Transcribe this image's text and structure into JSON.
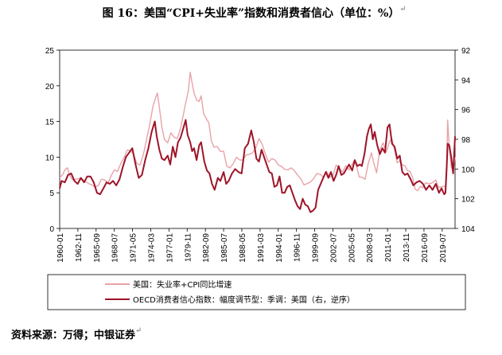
{
  "title": "图 16：美国“CPI+失业率”指数和消费者信心（单位：%）",
  "title_mark": "↵",
  "source": "资料来源：万得；中银证券",
  "source_mark": "↵",
  "chart_data": {
    "type": "line",
    "title": "图 16：美国“CPI+失业率”指数和消费者信心（单位：%）",
    "x_start_year": 1960,
    "x_end_year": 2021.5,
    "x_tick_labels": [
      "1960-01",
      "1962-11",
      "1965-09",
      "1968-07",
      "1971-05",
      "1974-03",
      "1977-01",
      "1979-11",
      "1982-09",
      "1985-07",
      "1988-05",
      "1991-03",
      "1994-01",
      "1996-11",
      "1999-09",
      "2002-07",
      "2005-05",
      "2008-03",
      "2011-01",
      "2013-11",
      "2016-09",
      "2019-07"
    ],
    "y_left": {
      "min": 0,
      "max": 25,
      "ticks": [
        0,
        5,
        10,
        15,
        20,
        25
      ]
    },
    "y_right": {
      "min": 92,
      "max": 104,
      "ticks": [
        92,
        94,
        96,
        98,
        100,
        102,
        104
      ],
      "inverted": true
    },
    "legend_placement": "bottom",
    "series": [
      {
        "name": "美国：失业率+CPI同比增速",
        "axis": "left",
        "color": "#e8a3a8",
        "points": [
          [
            1960.0,
            7.1
          ],
          [
            1960.5,
            7.6
          ],
          [
            1960.8,
            8.2
          ],
          [
            1961.2,
            8.5
          ],
          [
            1961.6,
            7.4
          ],
          [
            1962.0,
            6.8
          ],
          [
            1962.5,
            6.9
          ],
          [
            1963.0,
            7.0
          ],
          [
            1963.5,
            6.9
          ],
          [
            1964.0,
            6.6
          ],
          [
            1964.5,
            6.3
          ],
          [
            1965.0,
            6.1
          ],
          [
            1965.5,
            5.8
          ],
          [
            1966.0,
            6.0
          ],
          [
            1966.5,
            6.9
          ],
          [
            1967.0,
            6.8
          ],
          [
            1967.5,
            6.3
          ],
          [
            1968.0,
            7.4
          ],
          [
            1968.5,
            8.2
          ],
          [
            1969.0,
            8.0
          ],
          [
            1969.5,
            9.1
          ],
          [
            1970.0,
            9.9
          ],
          [
            1970.5,
            11.0
          ],
          [
            1971.0,
            10.9
          ],
          [
            1971.5,
            10.4
          ],
          [
            1972.0,
            9.1
          ],
          [
            1972.5,
            8.9
          ],
          [
            1973.0,
            10.3
          ],
          [
            1973.5,
            12.4
          ],
          [
            1974.0,
            14.5
          ],
          [
            1974.5,
            17.1
          ],
          [
            1974.8,
            18.0
          ],
          [
            1975.2,
            19.0
          ],
          [
            1975.5,
            17.0
          ],
          [
            1975.9,
            14.2
          ],
          [
            1976.3,
            12.5
          ],
          [
            1976.8,
            12.0
          ],
          [
            1977.3,
            13.4
          ],
          [
            1977.8,
            12.8
          ],
          [
            1978.3,
            12.6
          ],
          [
            1978.8,
            14.0
          ],
          [
            1979.2,
            15.8
          ],
          [
            1979.6,
            17.6
          ],
          [
            1980.0,
            19.2
          ],
          [
            1980.3,
            21.9
          ],
          [
            1980.6,
            20.4
          ],
          [
            1980.9,
            19.0
          ],
          [
            1981.3,
            18.0
          ],
          [
            1981.7,
            17.8
          ],
          [
            1982.0,
            18.6
          ],
          [
            1982.4,
            16.1
          ],
          [
            1982.8,
            15.4
          ],
          [
            1983.2,
            14.8
          ],
          [
            1983.6,
            12.3
          ],
          [
            1984.0,
            11.4
          ],
          [
            1984.5,
            11.5
          ],
          [
            1985.0,
            10.8
          ],
          [
            1985.5,
            10.8
          ],
          [
            1986.0,
            8.7
          ],
          [
            1986.5,
            8.5
          ],
          [
            1987.0,
            9.1
          ],
          [
            1987.5,
            10.0
          ],
          [
            1988.0,
            9.6
          ],
          [
            1988.5,
            9.6
          ],
          [
            1989.0,
            10.3
          ],
          [
            1989.5,
            10.4
          ],
          [
            1990.0,
            10.6
          ],
          [
            1990.5,
            11.3
          ],
          [
            1991.0,
            12.6
          ],
          [
            1991.5,
            11.8
          ],
          [
            1992.0,
            10.4
          ],
          [
            1992.5,
            9.3
          ],
          [
            1993.0,
            9.8
          ],
          [
            1993.5,
            9.6
          ],
          [
            1994.0,
            8.9
          ],
          [
            1994.5,
            8.7
          ],
          [
            1995.0,
            8.3
          ],
          [
            1995.5,
            8.2
          ],
          [
            1996.0,
            8.5
          ],
          [
            1996.5,
            8.1
          ],
          [
            1997.0,
            7.5
          ],
          [
            1997.5,
            7.0
          ],
          [
            1998.0,
            6.1
          ],
          [
            1998.5,
            6.3
          ],
          [
            1999.0,
            6.5
          ],
          [
            1999.5,
            7.0
          ],
          [
            2000.0,
            7.7
          ],
          [
            2000.5,
            7.6
          ],
          [
            2001.0,
            7.2
          ],
          [
            2001.5,
            8.0
          ],
          [
            2002.0,
            7.2
          ],
          [
            2002.5,
            7.4
          ],
          [
            2003.0,
            8.9
          ],
          [
            2003.5,
            8.4
          ],
          [
            2004.0,
            7.9
          ],
          [
            2004.5,
            8.8
          ],
          [
            2005.0,
            8.2
          ],
          [
            2005.5,
            9.0
          ],
          [
            2005.8,
            9.5
          ],
          [
            2006.2,
            8.6
          ],
          [
            2006.6,
            7.2
          ],
          [
            2007.0,
            7.2
          ],
          [
            2007.5,
            6.9
          ],
          [
            2008.0,
            9.1
          ],
          [
            2008.5,
            10.6
          ],
          [
            2008.9,
            9.0
          ],
          [
            2009.3,
            7.8
          ],
          [
            2009.8,
            11.0
          ],
          [
            2010.3,
            12.0
          ],
          [
            2010.8,
            10.7
          ],
          [
            2011.3,
            12.2
          ],
          [
            2011.7,
            12.5
          ],
          [
            2012.1,
            11.0
          ],
          [
            2012.5,
            9.2
          ],
          [
            2012.9,
            9.5
          ],
          [
            2013.3,
            8.9
          ],
          [
            2013.7,
            8.8
          ],
          [
            2014.1,
            8.1
          ],
          [
            2014.5,
            8.0
          ],
          [
            2014.9,
            7.1
          ],
          [
            2015.3,
            5.5
          ],
          [
            2015.7,
            5.3
          ],
          [
            2016.1,
            5.9
          ],
          [
            2016.5,
            5.7
          ],
          [
            2016.9,
            6.4
          ],
          [
            2017.3,
            6.3
          ],
          [
            2017.7,
            6.3
          ],
          [
            2018.1,
            6.5
          ],
          [
            2018.5,
            6.8
          ],
          [
            2018.9,
            5.8
          ],
          [
            2019.3,
            5.8
          ],
          [
            2019.7,
            5.9
          ],
          [
            2020.0,
            5.8
          ],
          [
            2020.2,
            9.4
          ],
          [
            2020.35,
            15.2
          ],
          [
            2020.6,
            11.5
          ],
          [
            2020.9,
            8.6
          ],
          [
            2021.2,
            8.1
          ],
          [
            2021.5,
            10.0
          ]
        ]
      },
      {
        "name": "OECD消费者信心指数：幅度调节型：季调：美国（右，逆序）",
        "axis": "right",
        "color": "#9e1428",
        "points": [
          [
            1960.0,
            101.3
          ],
          [
            1960.3,
            100.8
          ],
          [
            1960.8,
            100.9
          ],
          [
            1961.3,
            100.4
          ],
          [
            1961.8,
            100.3
          ],
          [
            1962.3,
            100.8
          ],
          [
            1962.8,
            101.0
          ],
          [
            1963.3,
            100.6
          ],
          [
            1963.8,
            100.9
          ],
          [
            1964.3,
            100.5
          ],
          [
            1964.8,
            100.5
          ],
          [
            1965.3,
            100.9
          ],
          [
            1965.8,
            101.6
          ],
          [
            1966.3,
            101.7
          ],
          [
            1966.8,
            101.3
          ],
          [
            1967.3,
            100.9
          ],
          [
            1967.8,
            101.0
          ],
          [
            1968.3,
            100.8
          ],
          [
            1968.8,
            101.1
          ],
          [
            1969.3,
            100.7
          ],
          [
            1969.8,
            99.9
          ],
          [
            1970.3,
            99.2
          ],
          [
            1970.8,
            98.9
          ],
          [
            1971.3,
            98.6
          ],
          [
            1971.8,
            99.7
          ],
          [
            1972.3,
            100.6
          ],
          [
            1972.8,
            100.4
          ],
          [
            1973.3,
            99.4
          ],
          [
            1973.8,
            98.6
          ],
          [
            1974.3,
            97.5
          ],
          [
            1974.8,
            96.8
          ],
          [
            1975.1,
            97.8
          ],
          [
            1975.5,
            98.7
          ],
          [
            1975.9,
            99.3
          ],
          [
            1976.3,
            99.4
          ],
          [
            1976.8,
            99.1
          ],
          [
            1977.2,
            99.7
          ],
          [
            1977.6,
            98.5
          ],
          [
            1978.0,
            99.2
          ],
          [
            1978.4,
            98.2
          ],
          [
            1978.8,
            97.9
          ],
          [
            1979.2,
            97.3
          ],
          [
            1979.6,
            96.7
          ],
          [
            1979.9,
            97.7
          ],
          [
            1980.3,
            98.2
          ],
          [
            1980.6,
            98.8
          ],
          [
            1980.9,
            98.6
          ],
          [
            1981.3,
            99.4
          ],
          [
            1981.7,
            98.4
          ],
          [
            1982.0,
            98.2
          ],
          [
            1982.5,
            99.5
          ],
          [
            1982.9,
            100.1
          ],
          [
            1983.3,
            100.3
          ],
          [
            1983.7,
            101.0
          ],
          [
            1984.1,
            101.4
          ],
          [
            1984.6,
            100.6
          ],
          [
            1985.0,
            100.8
          ],
          [
            1985.5,
            100.2
          ],
          [
            1985.9,
            101.0
          ],
          [
            1986.3,
            100.8
          ],
          [
            1986.8,
            100.3
          ],
          [
            1987.3,
            100.0
          ],
          [
            1987.8,
            100.2
          ],
          [
            1988.3,
            100.3
          ],
          [
            1988.8,
            98.6
          ],
          [
            1989.3,
            98.3
          ],
          [
            1989.8,
            97.4
          ],
          [
            1990.2,
            98.2
          ],
          [
            1990.6,
            99.3
          ],
          [
            1991.0,
            99.5
          ],
          [
            1991.4,
            98.7
          ],
          [
            1991.8,
            99.2
          ],
          [
            1992.2,
            99.7
          ],
          [
            1992.6,
            100.2
          ],
          [
            1993.0,
            100.3
          ],
          [
            1993.4,
            101.2
          ],
          [
            1993.8,
            101.1
          ],
          [
            1994.2,
            100.5
          ],
          [
            1994.6,
            101.6
          ],
          [
            1995.0,
            101.6
          ],
          [
            1995.4,
            101.2
          ],
          [
            1995.8,
            101.1
          ],
          [
            1996.2,
            101.6
          ],
          [
            1996.6,
            102.1
          ],
          [
            1997.0,
            102.5
          ],
          [
            1997.4,
            102.7
          ],
          [
            1997.8,
            102.0
          ],
          [
            1998.2,
            102.4
          ],
          [
            1998.6,
            102.5
          ],
          [
            1999.0,
            102.9
          ],
          [
            1999.4,
            102.8
          ],
          [
            1999.8,
            102.6
          ],
          [
            2000.2,
            101.4
          ],
          [
            2000.6,
            101.0
          ],
          [
            2001.0,
            100.6
          ],
          [
            2001.4,
            100.2
          ],
          [
            2001.8,
            100.6
          ],
          [
            2002.2,
            100.2
          ],
          [
            2002.6,
            100.8
          ],
          [
            2003.0,
            100.4
          ],
          [
            2003.4,
            99.8
          ],
          [
            2003.8,
            100.4
          ],
          [
            2004.2,
            100.3
          ],
          [
            2004.6,
            100.0
          ],
          [
            2005.0,
            99.7
          ],
          [
            2005.5,
            100.1
          ],
          [
            2005.9,
            99.4
          ],
          [
            2006.3,
            99.8
          ],
          [
            2006.7,
            99.7
          ],
          [
            2007.0,
            99.8
          ],
          [
            2007.4,
            99.0
          ],
          [
            2007.8,
            97.8
          ],
          [
            2008.1,
            97.3
          ],
          [
            2008.4,
            97.0
          ],
          [
            2008.7,
            98.0
          ],
          [
            2009.0,
            97.5
          ],
          [
            2009.4,
            98.4
          ],
          [
            2009.8,
            99.0
          ],
          [
            2010.2,
            98.6
          ],
          [
            2010.6,
            98.9
          ],
          [
            2011.0,
            97.2
          ],
          [
            2011.3,
            97.0
          ],
          [
            2011.7,
            98.3
          ],
          [
            2012.1,
            98.5
          ],
          [
            2012.5,
            99.3
          ],
          [
            2012.9,
            99.1
          ],
          [
            2013.3,
            100.2
          ],
          [
            2013.7,
            100.4
          ],
          [
            2014.1,
            100.3
          ],
          [
            2014.6,
            100.7
          ],
          [
            2015.0,
            101.1
          ],
          [
            2015.5,
            100.9
          ],
          [
            2016.0,
            100.8
          ],
          [
            2016.5,
            101.0
          ],
          [
            2017.0,
            101.4
          ],
          [
            2017.5,
            101.1
          ],
          [
            2018.0,
            101.4
          ],
          [
            2018.5,
            101.0
          ],
          [
            2019.0,
            101.6
          ],
          [
            2019.4,
            101.3
          ],
          [
            2019.8,
            101.7
          ],
          [
            2020.0,
            101.6
          ],
          [
            2020.2,
            99.9
          ],
          [
            2020.35,
            98.3
          ],
          [
            2020.6,
            98.4
          ],
          [
            2020.9,
            99.2
          ],
          [
            2021.2,
            100.3
          ],
          [
            2021.5,
            97.8
          ]
        ]
      }
    ]
  }
}
